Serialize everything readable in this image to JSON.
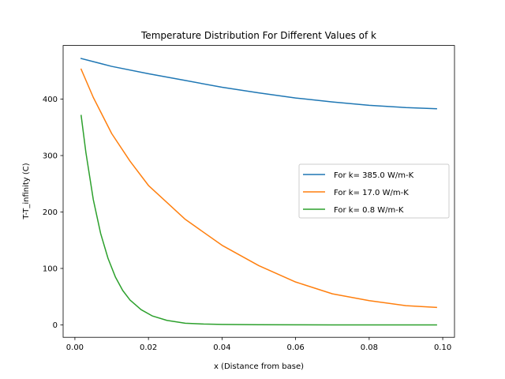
{
  "chart_data": {
    "type": "line",
    "title": "Temperature Distribution For Different Values of k",
    "xlabel": "x (Distance from base)",
    "ylabel": "T-T_infinity (C)",
    "xlim": [
      -0.0032,
      0.1032
    ],
    "ylim": [
      -22,
      495
    ],
    "xticks": [
      0.0,
      0.02,
      0.04,
      0.06,
      0.08,
      0.1
    ],
    "xtick_labels": [
      "0.00",
      "0.02",
      "0.04",
      "0.06",
      "0.08",
      "0.10"
    ],
    "yticks": [
      0,
      100,
      200,
      300,
      400
    ],
    "ytick_labels": [
      "0",
      "100",
      "200",
      "300",
      "400"
    ],
    "grid": false,
    "legend_position": "center-right",
    "series": [
      {
        "name": "For k= 385.0 W/m-K",
        "color": "#1f77b4",
        "x": [
          0.0017,
          0.01,
          0.02,
          0.03,
          0.04,
          0.05,
          0.06,
          0.07,
          0.08,
          0.09,
          0.0983
        ],
        "y": [
          472,
          458,
          445,
          433,
          421,
          411,
          402,
          395,
          389,
          385,
          383
        ]
      },
      {
        "name": "For k= 17.0 W/m-K",
        "color": "#ff7f0e",
        "x": [
          0.0017,
          0.005,
          0.01,
          0.015,
          0.02,
          0.03,
          0.04,
          0.05,
          0.06,
          0.07,
          0.08,
          0.09,
          0.0983
        ],
        "y": [
          453,
          403,
          339,
          290,
          247,
          187,
          141,
          105,
          76,
          55,
          43,
          34,
          31
        ]
      },
      {
        "name": "For k= 0.8 W/m-K",
        "color": "#2ca02c",
        "x": [
          0.0017,
          0.003,
          0.005,
          0.007,
          0.009,
          0.011,
          0.013,
          0.015,
          0.018,
          0.021,
          0.025,
          0.03,
          0.035,
          0.04,
          0.05,
          0.06,
          0.07,
          0.08,
          0.09,
          0.0983
        ],
        "y": [
          371,
          305,
          222,
          162,
          118,
          85,
          61,
          44,
          27,
          16,
          8,
          3,
          1.5,
          0.8,
          0.3,
          0.1,
          0.05,
          0.02,
          0.01,
          0
        ]
      }
    ]
  }
}
